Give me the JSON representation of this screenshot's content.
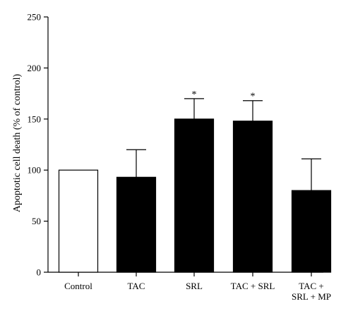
{
  "chart_data": {
    "type": "bar",
    "categories": [
      [
        "Control"
      ],
      [
        "TAC"
      ],
      [
        "SRL"
      ],
      [
        "TAC + SRL"
      ],
      [
        "TAC +",
        "SRL + MP"
      ]
    ],
    "values": [
      100,
      93,
      150,
      148,
      80
    ],
    "errors": [
      0,
      27,
      20,
      20,
      31
    ],
    "significance": [
      "",
      "",
      "*",
      "*",
      ""
    ],
    "fill_colors": [
      "#ffffff",
      "#000000",
      "#000000",
      "#000000",
      "#000000"
    ],
    "ylabel": "Apoptotic cell death (% of control)",
    "xlabel": "",
    "title": "",
    "ylim": [
      0,
      250
    ],
    "yticks": [
      "0",
      "50",
      "100",
      "150",
      "200",
      "250"
    ],
    "grid": false,
    "legend": false
  }
}
